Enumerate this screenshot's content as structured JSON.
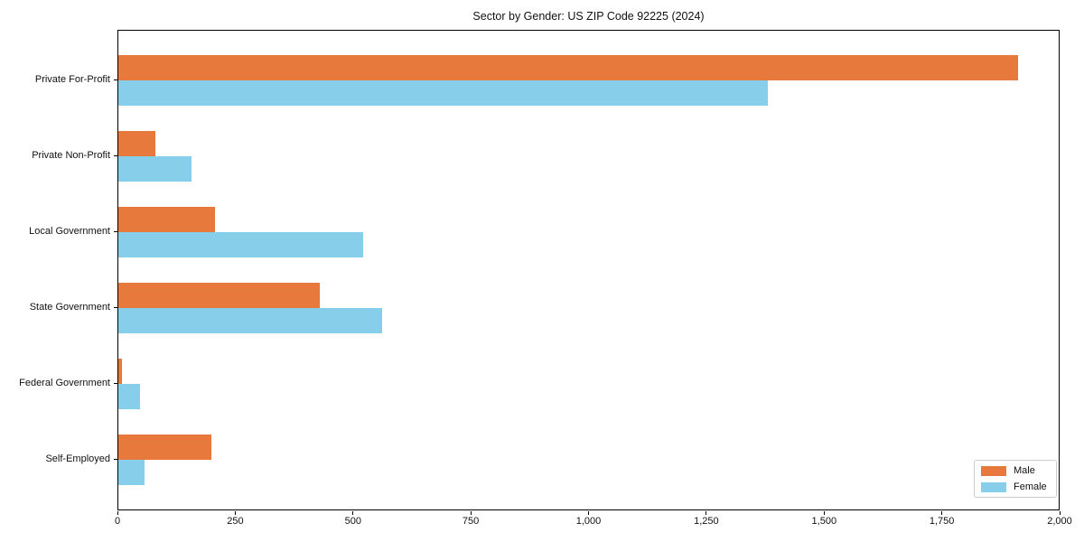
{
  "chart_data": {
    "type": "bar",
    "orientation": "horizontal",
    "title": "Sector by Gender: US ZIP Code 92225 (2024)",
    "categories": [
      "Private For-Profit",
      "Private Non-Profit",
      "Local Government",
      "State Government",
      "Federal Government",
      "Self-Employed"
    ],
    "series": [
      {
        "name": "Male",
        "color": "#e8793d",
        "values": [
          1910,
          78,
          205,
          428,
          8,
          198
        ]
      },
      {
        "name": "Female",
        "color": "#87ceeb",
        "values": [
          1378,
          155,
          520,
          560,
          45,
          55
        ]
      }
    ],
    "xlabel": "",
    "ylabel": "",
    "xlim": [
      0,
      2000
    ],
    "xticks": [
      0,
      250,
      500,
      750,
      1000,
      1250,
      1500,
      1750,
      2000
    ],
    "xtick_labels": [
      "0",
      "250",
      "500",
      "750",
      "1,000",
      "1,250",
      "1,500",
      "1,750",
      "2,000"
    ],
    "grid": false,
    "legend_position": "lower right",
    "background_color": "#ffffff",
    "spine_color": "#000000"
  }
}
